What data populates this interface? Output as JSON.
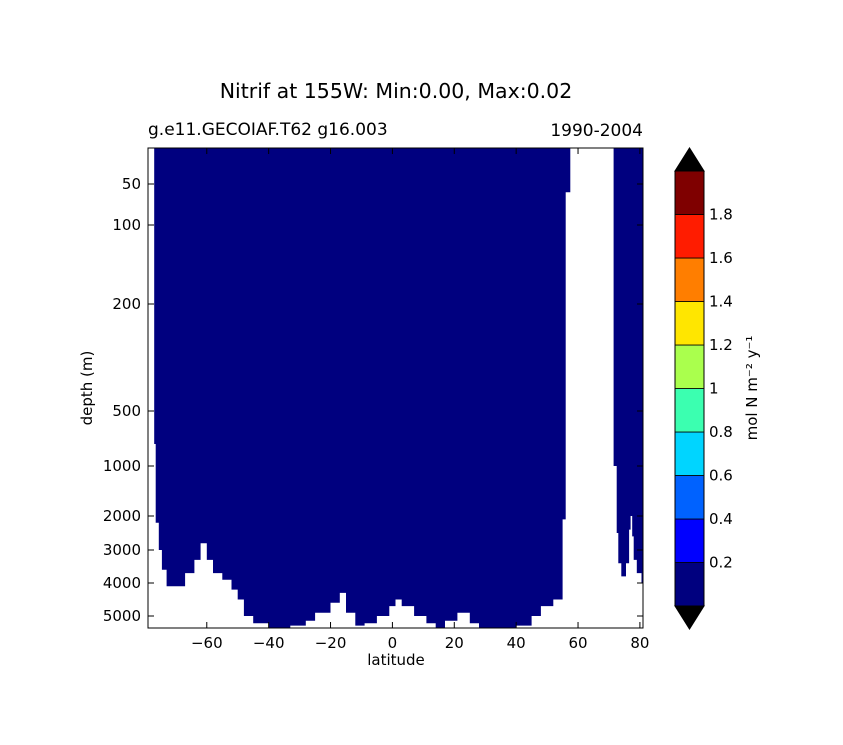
{
  "chart_data": {
    "type": "heatmap",
    "title": "Nitrif at 155W: Min:0.00, Max:0.02",
    "subtitle_left": "g.e11.GECOIAF.T62 g16.003",
    "subtitle_right": "1990-2004",
    "xlabel": "latitude",
    "ylabel": "depth (m)",
    "xlim": [
      -79,
      81
    ],
    "ylim": [
      5500,
      10
    ],
    "yscale": "nonlinear",
    "x_ticks": [
      -60,
      -40,
      -20,
      0,
      20,
      40,
      60,
      80
    ],
    "x_tick_labels": [
      "−60",
      "−40",
      "−20",
      "0",
      "20",
      "40",
      "60",
      "80"
    ],
    "y_ticks": [
      50,
      100,
      200,
      500,
      1000,
      2000,
      3000,
      4000,
      5000
    ],
    "y_tick_labels": [
      "50",
      "100",
      "200",
      "500",
      "1000",
      "2000",
      "3000",
      "4000",
      "5000"
    ],
    "field_value_everywhere": "0.00–0.02 (lowest color level)",
    "fill_color": "#00007f",
    "land_color": "#ffffff",
    "bathymetry_depth_m": [
      [
        -77,
        800
      ],
      [
        -76.5,
        2200
      ],
      [
        -75.5,
        3000
      ],
      [
        -74.5,
        3600
      ],
      [
        -73,
        4100
      ],
      [
        -67,
        3700
      ],
      [
        -64,
        3300
      ],
      [
        -62,
        2800
      ],
      [
        -60,
        3300
      ],
      [
        -58,
        3700
      ],
      [
        -55,
        3900
      ],
      [
        -52,
        4200
      ],
      [
        -50,
        4500
      ],
      [
        -48,
        5000
      ],
      [
        -45,
        5300
      ],
      [
        -40,
        5600
      ],
      [
        -37,
        5500
      ],
      [
        -33,
        5400
      ],
      [
        -28,
        5200
      ],
      [
        -25,
        4900
      ],
      [
        -20,
        4600
      ],
      [
        -17,
        4300
      ],
      [
        -15,
        4900
      ],
      [
        -12,
        5400
      ],
      [
        -9,
        5300
      ],
      [
        -5,
        5000
      ],
      [
        -1,
        4700
      ],
      [
        1,
        4500
      ],
      [
        3,
        4700
      ],
      [
        7,
        5000
      ],
      [
        11,
        5300
      ],
      [
        14,
        5600
      ],
      [
        17,
        5200
      ],
      [
        21,
        4900
      ],
      [
        25,
        5300
      ],
      [
        28,
        5600
      ],
      [
        40,
        5400
      ],
      [
        45,
        5000
      ],
      [
        48,
        4700
      ],
      [
        52,
        4500
      ],
      [
        55,
        2100
      ],
      [
        56,
        60
      ],
      [
        57.5,
        60
      ]
    ],
    "land_between_lat": [
      57.5,
      71.5
    ],
    "arctic_bathymetry_depth_m": [
      [
        71.5,
        1000
      ],
      [
        72.5,
        2500
      ],
      [
        73,
        3400
      ],
      [
        74,
        3800
      ],
      [
        75.5,
        3400
      ],
      [
        76.5,
        2400
      ],
      [
        77,
        2000
      ],
      [
        77.5,
        2600
      ],
      [
        78,
        3300
      ],
      [
        79,
        3700
      ],
      [
        80.5,
        4000
      ]
    ]
  },
  "colorbar": {
    "label": "mol N m⁻² y⁻¹",
    "extend": "both",
    "levels": [
      0,
      0.2,
      0.4,
      0.6,
      0.8,
      1.0,
      1.2,
      1.4,
      1.6,
      1.8,
      2.0
    ],
    "tick_values": [
      0.2,
      0.4,
      0.6,
      0.8,
      1.0,
      1.2,
      1.4,
      1.6,
      1.8
    ],
    "tick_labels": [
      "0.2",
      "0.4",
      "0.6",
      "0.8",
      "1",
      "1.2",
      "1.4",
      "1.6",
      "1.8"
    ],
    "colors": [
      "#00007f",
      "#0000ff",
      "#0062ff",
      "#00d5ff",
      "#3bffb0",
      "#aaff4d",
      "#ffe600",
      "#ff7e00",
      "#ff1c00",
      "#7f0000"
    ],
    "under_color": "#000000",
    "over_color": "#000000"
  }
}
